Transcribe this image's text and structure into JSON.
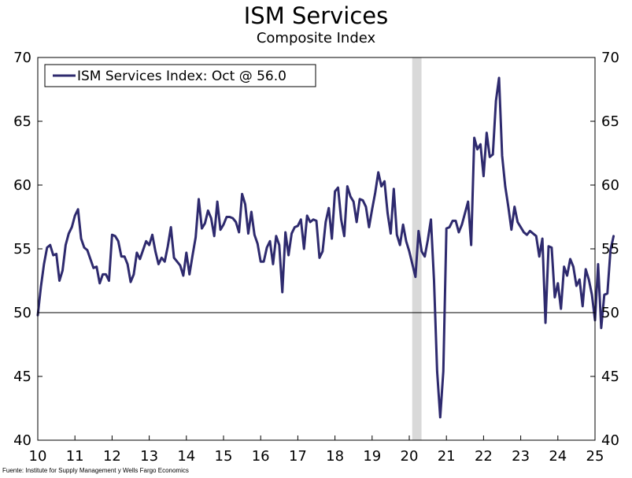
{
  "chart_data": {
    "type": "line",
    "title": "ISM Services",
    "subtitle": "Composite Index",
    "source": "Fuente: Institute for Supply Management y Wells Fargo Economics",
    "legend": {
      "label": "ISM Services Index: Oct @ 56.0",
      "position": "top-left"
    },
    "xlim": [
      2010,
      2025
    ],
    "ylim": [
      40,
      70
    ],
    "x_ticks": [
      "10",
      "11",
      "12",
      "13",
      "14",
      "15",
      "16",
      "17",
      "18",
      "19",
      "20",
      "21",
      "22",
      "23",
      "24",
      "25"
    ],
    "y_ticks": [
      "40",
      "45",
      "50",
      "55",
      "60",
      "65",
      "70"
    ],
    "reference_line": 50,
    "recession_band": {
      "start": 2020.08,
      "end": 2020.33
    },
    "colors": {
      "line": "#2e2a6e",
      "band": "#d9d9d9",
      "axis": "#000000"
    },
    "series": [
      {
        "name": "ISM Services Index",
        "start": 2010.0,
        "step_months": 1,
        "values": [
          49.8,
          52.0,
          53.8,
          55.1,
          55.3,
          54.5,
          54.6,
          52.5,
          53.3,
          55.3,
          56.2,
          56.7,
          57.6,
          58.1,
          55.8,
          55.1,
          54.9,
          54.2,
          53.5,
          53.6,
          52.3,
          53.0,
          53.0,
          52.5,
          56.1,
          56.0,
          55.6,
          54.4,
          54.4,
          53.8,
          52.4,
          53.0,
          54.7,
          54.2,
          54.9,
          55.6,
          55.3,
          56.1,
          54.8,
          53.8,
          54.3,
          54.0,
          55.2,
          56.7,
          54.3,
          54.0,
          53.7,
          52.9,
          54.7,
          53.0,
          54.5,
          55.9,
          58.9,
          56.6,
          57.0,
          58.0,
          57.4,
          56.0,
          58.7,
          56.5,
          56.9,
          57.5,
          57.5,
          57.4,
          57.1,
          56.3,
          59.3,
          58.5,
          56.2,
          57.9,
          56.1,
          55.4,
          54.0,
          54.0,
          55.1,
          55.6,
          53.8,
          56.0,
          55.3,
          51.6,
          56.3,
          54.5,
          56.2,
          56.7,
          56.8,
          57.3,
          55.0,
          57.6,
          57.1,
          57.3,
          57.2,
          54.3,
          54.8,
          57.1,
          58.2,
          55.8,
          59.5,
          59.8,
          57.3,
          56.0,
          59.9,
          59.1,
          58.7,
          57.1,
          58.9,
          58.8,
          58.3,
          56.7,
          58.1,
          59.4,
          61.0,
          59.9,
          60.3,
          57.8,
          56.2,
          59.7,
          56.1,
          55.3,
          56.9,
          55.6,
          54.8,
          53.8,
          52.8,
          56.4,
          54.8,
          54.4,
          55.7,
          57.3,
          52.5,
          45.4,
          41.8,
          45.4,
          56.6,
          56.7,
          57.2,
          57.2,
          56.3,
          56.9,
          57.8,
          58.7,
          55.3,
          63.7,
          62.8,
          63.2,
          60.7,
          64.1,
          62.2,
          62.4,
          66.6,
          68.4,
          62.3,
          59.9,
          58.3,
          56.5,
          58.3,
          57.1,
          56.7,
          56.3,
          56.1,
          56.4,
          56.2,
          56.0,
          54.4,
          55.8,
          49.2,
          55.2,
          55.1,
          51.2,
          52.3,
          50.3,
          53.6,
          52.9,
          54.2,
          53.6,
          52.1,
          52.6,
          50.5,
          53.4,
          52.6,
          51.4,
          49.4,
          53.8,
          48.8,
          51.4,
          51.5,
          54.9,
          56.0
        ]
      }
    ]
  }
}
